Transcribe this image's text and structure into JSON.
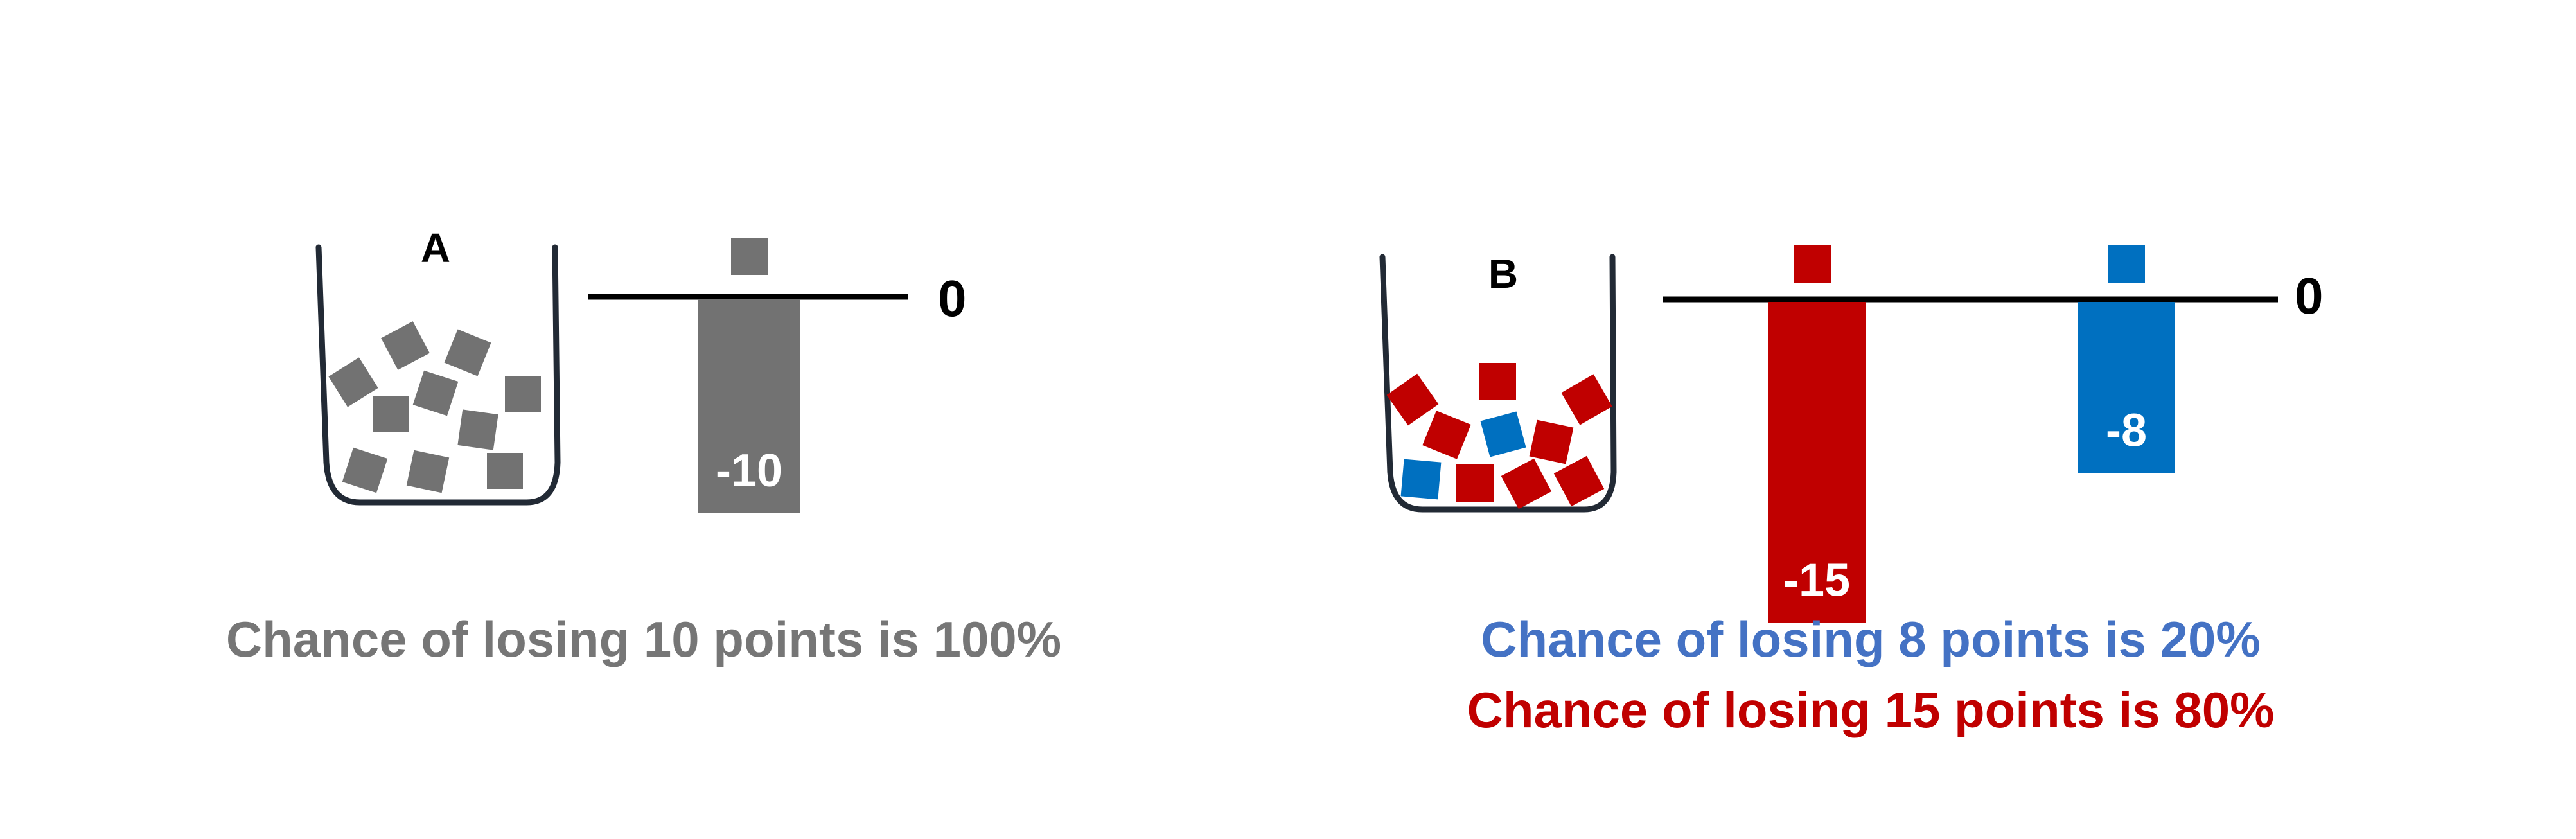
{
  "colors": {
    "gray": "#727272",
    "red": "#C00000",
    "blue": "#0070C0",
    "caption_blue": "#4472C4",
    "caption_gray": "#767676",
    "ink": "#000000",
    "urn_stroke": "#222a35"
  },
  "panel_a": {
    "urn_label": "A",
    "zero_label": "0",
    "bars": [
      {
        "value": -10,
        "label": "-10",
        "color_key": "gray"
      }
    ],
    "caption": "Chance of losing 10 points is 100%"
  },
  "panel_b": {
    "urn_label": "B",
    "zero_label": "0",
    "bars": [
      {
        "value": -15,
        "label": "-15",
        "color_key": "red"
      },
      {
        "value": -8,
        "label": "-8",
        "color_key": "blue"
      }
    ],
    "captions": [
      {
        "text": "Chance of losing 8 points is 20%",
        "color_key": "caption_blue"
      },
      {
        "text": "Chance of losing 15 points is 80%",
        "color_key": "red"
      }
    ]
  }
}
